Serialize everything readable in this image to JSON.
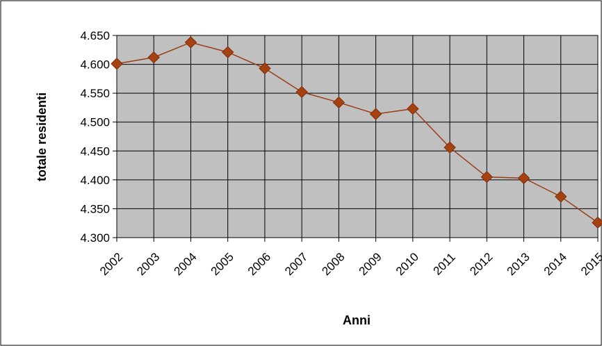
{
  "chart_data": {
    "type": "line",
    "title": "",
    "xlabel": "Anni",
    "ylabel": "totale residenti",
    "x": [
      "2002",
      "2003",
      "2004",
      "2005",
      "2006",
      "2007",
      "2008",
      "2009",
      "2010",
      "2011",
      "2012",
      "2013",
      "2014",
      "2015"
    ],
    "series": [
      {
        "values": [
          4601,
          4612,
          4638,
          4621,
          4593,
          4552,
          4534,
          4514,
          4523,
          4456,
          4405,
          4403,
          4371,
          4326
        ]
      }
    ],
    "ylim": [
      4300,
      4650
    ],
    "yticks": [
      "4.300",
      "4.350",
      "4.400",
      "4.450",
      "4.500",
      "4.550",
      "4.600",
      "4.650"
    ],
    "ytick_values": [
      4300,
      4350,
      4400,
      4450,
      4500,
      4550,
      4600,
      4650
    ],
    "grid": true,
    "colors": {
      "line": "#9B3D16",
      "marker": "#A64210",
      "plot_bg": "#C0C0C0",
      "grid": "#000000"
    }
  }
}
